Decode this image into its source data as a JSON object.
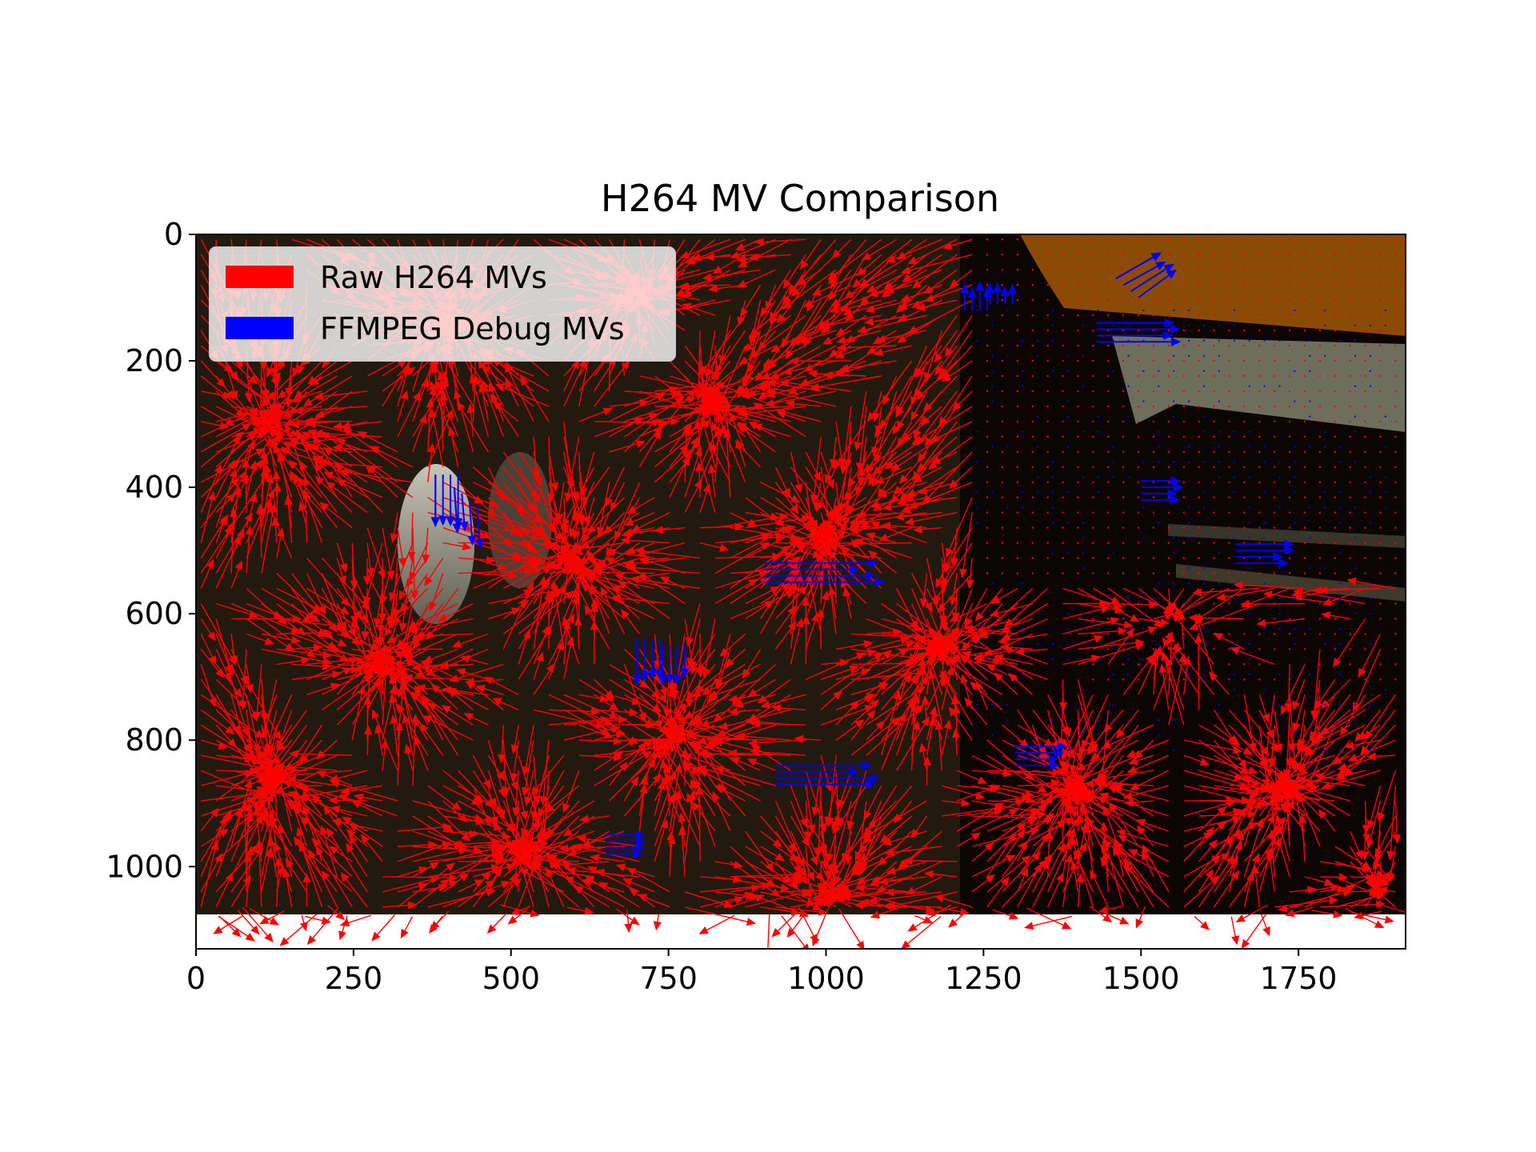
{
  "chart_data": {
    "type": "quiver",
    "title": "H264 MV Comparison",
    "xlabel": "",
    "ylabel": "",
    "xlim": [
      0,
      1920
    ],
    "ylim": [
      1130,
      0
    ],
    "frame_width": 1920,
    "frame_height": 1080,
    "grid": false,
    "legend_position": "upper-left",
    "x_ticks": [
      0,
      250,
      500,
      750,
      1000,
      1250,
      1500,
      1750
    ],
    "y_ticks": [
      0,
      200,
      400,
      600,
      800,
      1000
    ],
    "x_tick_labels": [
      "0",
      "250",
      "500",
      "750",
      "1000",
      "1250",
      "1500",
      "1750"
    ],
    "y_tick_labels": [
      "0",
      "200",
      "400",
      "600",
      "800",
      "1000"
    ],
    "series": [
      {
        "name": "Raw H264 MVs",
        "color": "#ff0000",
        "convergence_centers": [
          {
            "x": 120,
            "y": 300
          },
          {
            "x": 400,
            "y": 140
          },
          {
            "x": 700,
            "y": 100
          },
          {
            "x": 820,
            "y": 260
          },
          {
            "x": 1000,
            "y": 480
          },
          {
            "x": 760,
            "y": 790
          },
          {
            "x": 300,
            "y": 680
          },
          {
            "x": 120,
            "y": 860
          },
          {
            "x": 520,
            "y": 980
          },
          {
            "x": 1000,
            "y": 1050
          },
          {
            "x": 1180,
            "y": 650
          },
          {
            "x": 1400,
            "y": 880
          },
          {
            "x": 1720,
            "y": 880
          },
          {
            "x": 1880,
            "y": 1030
          },
          {
            "x": 600,
            "y": 520
          },
          {
            "x": 1550,
            "y": 600
          }
        ]
      },
      {
        "name": "FFMPEG Debug MVs",
        "color": "#0000ff",
        "sample_vectors": [
          {
            "x": 380,
            "y": 380,
            "dx": 0,
            "dy": 80
          },
          {
            "x": 410,
            "y": 400,
            "dx": 5,
            "dy": 70
          },
          {
            "x": 1220,
            "y": 120,
            "dx": 0,
            "dy": -40
          },
          {
            "x": 1260,
            "y": 110,
            "dx": 0,
            "dy": -30
          },
          {
            "x": 1460,
            "y": 70,
            "dx": 70,
            "dy": -40
          },
          {
            "x": 1430,
            "y": 140,
            "dx": 120,
            "dy": 0
          },
          {
            "x": 900,
            "y": 520,
            "dx": 180,
            "dy": 0
          },
          {
            "x": 920,
            "y": 840,
            "dx": 150,
            "dy": 0
          },
          {
            "x": 650,
            "y": 950,
            "dx": 60,
            "dy": 0
          },
          {
            "x": 700,
            "y": 640,
            "dx": 0,
            "dy": 70
          },
          {
            "x": 740,
            "y": 650,
            "dx": 0,
            "dy": 60
          },
          {
            "x": 1300,
            "y": 810,
            "dx": 80,
            "dy": 0
          },
          {
            "x": 1650,
            "y": 490,
            "dx": 90,
            "dy": 0
          },
          {
            "x": 1500,
            "y": 390,
            "dx": 60,
            "dy": 0
          }
        ]
      }
    ]
  }
}
